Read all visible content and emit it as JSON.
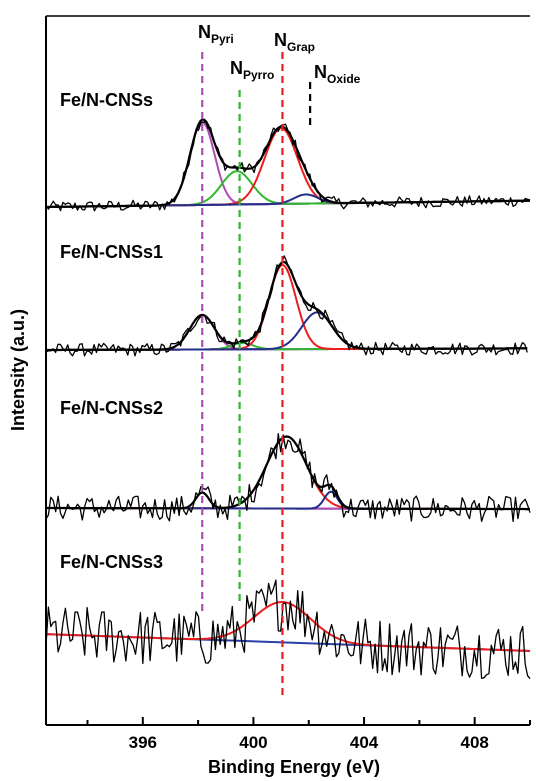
{
  "chart_data": {
    "type": "line",
    "subtype": "stacked XPS N 1s spectra with peak deconvolution",
    "xlabel": "Binding Energy (eV)",
    "ylabel": "Intensity (a.u.)",
    "xlim": [
      392.5,
      410.0
    ],
    "x_ticks": [
      "396",
      "400",
      "404",
      "408"
    ],
    "x_tick_values": [
      396,
      400,
      404,
      408
    ],
    "reference_lines": [
      {
        "base": "N",
        "sub": "Pyri",
        "x": 398.15,
        "color": "#b04ab8"
      },
      {
        "base": "N",
        "sub": "Pyrro",
        "x": 399.5,
        "color": "#2db82d"
      },
      {
        "base": "N",
        "sub": "Grap",
        "x": 401.05,
        "color": "#ee1c1c"
      },
      {
        "base": "N",
        "sub": "Oxide",
        "x": 402.05,
        "color": "#000000"
      }
    ],
    "colors": {
      "raw": "#000000",
      "envelope": "#000000",
      "background": "#2a3ea8",
      "N_Pyri": "#b04ab8",
      "N_Pyrro": "#2db82d",
      "N_Grap": "#ee1c1c",
      "N_Oxide": "#232f8a"
    },
    "series": [
      {
        "name": "Fe/N-CNSs",
        "x_range": [
          392.5,
          410.0
        ],
        "baseline": [
          0.0,
          0.055
        ],
        "noise": 0.05,
        "peaks": [
          {
            "component": "N_Pyri",
            "center": 398.15,
            "height": 0.72,
            "fwhm": 1.05
          },
          {
            "component": "N_Pyrro",
            "center": 399.4,
            "height": 0.29,
            "fwhm": 1.3
          },
          {
            "component": "N_Grap",
            "center": 401.0,
            "height": 0.66,
            "fwhm": 1.4
          },
          {
            "component": "N_Oxide",
            "center": 401.9,
            "height": 0.08,
            "fwhm": 1.0
          }
        ]
      },
      {
        "name": "Fe/N-CNSs1",
        "x_range": [
          392.5,
          409.9
        ],
        "baseline": [
          0.0,
          0.015
        ],
        "noise": 0.06,
        "peaks": [
          {
            "component": "N_Pyri",
            "center": 398.15,
            "height": 0.32,
            "fwhm": 1.05
          },
          {
            "component": "N_Pyrro",
            "center": 399.6,
            "height": 0.06,
            "fwhm": 0.9
          },
          {
            "component": "N_Grap",
            "center": 401.05,
            "height": 0.78,
            "fwhm": 1.15
          },
          {
            "component": "N_Oxide",
            "center": 402.3,
            "height": 0.34,
            "fwhm": 1.3
          }
        ]
      },
      {
        "name": "Fe/N-CNSs2",
        "x_range": [
          392.5,
          410.0
        ],
        "baseline": [
          0.0,
          -0.01
        ],
        "noise": 0.12,
        "peaks": [
          {
            "component": "N_Pyri",
            "center": 398.15,
            "height": 0.15,
            "fwhm": 0.55
          },
          {
            "component": "N_Grap",
            "center": 401.2,
            "height": 0.68,
            "fwhm": 1.7
          },
          {
            "component": "N_Oxide",
            "center": 402.8,
            "height": 0.16,
            "fwhm": 0.55
          }
        ]
      },
      {
        "name": "Fe/N-CNSs3",
        "x_range": [
          392.5,
          410.0
        ],
        "baseline": [
          0.07,
          -0.08
        ],
        "noise": 0.26,
        "peaks": [
          {
            "component": "N_Grap",
            "center": 401.05,
            "height": 0.36,
            "fwhm": 2.4
          }
        ]
      }
    ]
  }
}
